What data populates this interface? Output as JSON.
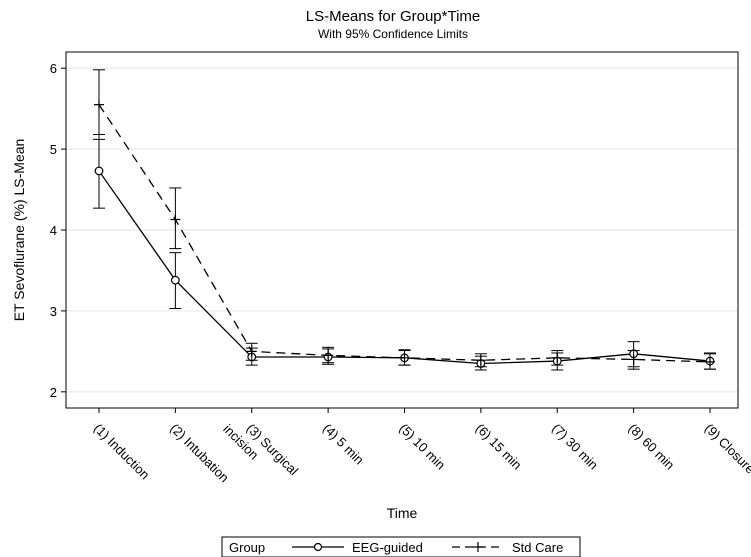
{
  "chart_data": {
    "type": "line",
    "title": "LS-Means for Group*Time",
    "subtitle": "With 95% Confidence Limits",
    "xlabel": "Time",
    "ylabel": "ET Sevoflurane (%) LS-Mean",
    "categories": [
      [
        "(1) Induction"
      ],
      [
        "(2) Intubation"
      ],
      [
        "(3) Surgical",
        "incision"
      ],
      [
        "(4)  5 min"
      ],
      [
        "(5) 10 min"
      ],
      [
        "(6) 15 min"
      ],
      [
        "(7) 30 min"
      ],
      [
        "(8) 60 min"
      ],
      [
        "(9) Closure"
      ]
    ],
    "yticks": [
      "2",
      "3",
      "4",
      "5",
      "6"
    ],
    "ylim": [
      1.8,
      6.2
    ],
    "grid": "horizontal",
    "legend": {
      "placement": "bottom",
      "title": "Group",
      "entries": [
        "EEG-guided",
        "Std Care"
      ]
    },
    "series": [
      {
        "name": "EEG-guided",
        "line": "solid",
        "marker": "circle",
        "values": [
          4.73,
          3.38,
          2.43,
          2.43,
          2.42,
          2.35,
          2.38,
          2.47,
          2.38
        ],
        "lower": [
          4.27,
          3.03,
          2.33,
          2.34,
          2.33,
          2.27,
          2.27,
          2.31,
          2.28
        ],
        "upper": [
          5.18,
          3.72,
          2.54,
          2.53,
          2.51,
          2.44,
          2.48,
          2.62,
          2.48
        ]
      },
      {
        "name": "Std Care",
        "line": "dashed",
        "marker": "plus",
        "values": [
          5.55,
          4.13,
          2.5,
          2.45,
          2.42,
          2.39,
          2.42,
          2.4,
          2.37
        ],
        "lower": [
          5.12,
          3.77,
          2.39,
          2.36,
          2.33,
          2.31,
          2.33,
          2.28,
          2.28
        ],
        "upper": [
          5.98,
          4.52,
          2.6,
          2.55,
          2.52,
          2.47,
          2.51,
          2.51,
          2.47
        ]
      }
    ],
    "colors": {
      "line": "#000000",
      "grid": "#e6e6e6",
      "frame": "#000000"
    }
  }
}
